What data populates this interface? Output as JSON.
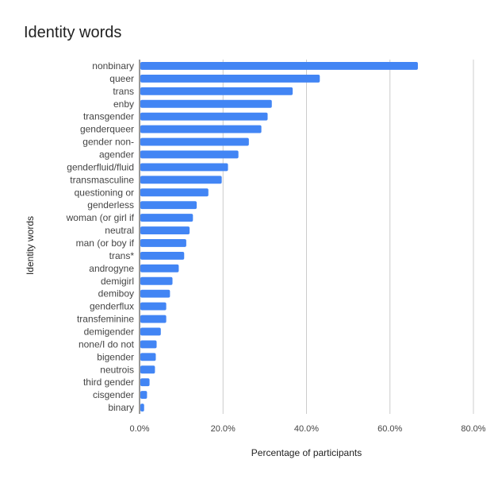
{
  "chart_data": {
    "type": "bar",
    "orientation": "horizontal",
    "title": "Identity words",
    "xlabel": "Percentage of participants",
    "ylabel": "Identity words",
    "xlim": [
      0,
      80
    ],
    "xticks": [
      0,
      20,
      40,
      60,
      80
    ],
    "xtick_labels": [
      "0.0%",
      "20.0%",
      "40.0%",
      "60.0%",
      "80.0%"
    ],
    "grid": true,
    "bar_color": "#4285f4",
    "categories": [
      "nonbinary",
      "queer",
      "trans",
      "enby",
      "transgender",
      "genderqueer",
      "gender non-",
      "agender",
      "genderfluid/fluid",
      "transmasculine",
      "questioning or",
      "genderless",
      "woman (or girl if",
      "neutral",
      "man (or boy if",
      "trans*",
      "androgyne",
      "demigirl",
      "demiboy",
      "genderflux",
      "transfeminine",
      "demigender",
      "none/I do not",
      "bigender",
      "neutrois",
      "third gender",
      "cisgender",
      "binary"
    ],
    "values": [
      66.5,
      43.0,
      36.5,
      31.5,
      30.5,
      29.0,
      26.0,
      23.5,
      21.0,
      19.5,
      16.3,
      13.5,
      12.6,
      11.8,
      11.0,
      10.5,
      9.2,
      7.7,
      7.1,
      6.2,
      6.2,
      4.9,
      3.9,
      3.7,
      3.5,
      2.2,
      1.6,
      0.9
    ]
  }
}
